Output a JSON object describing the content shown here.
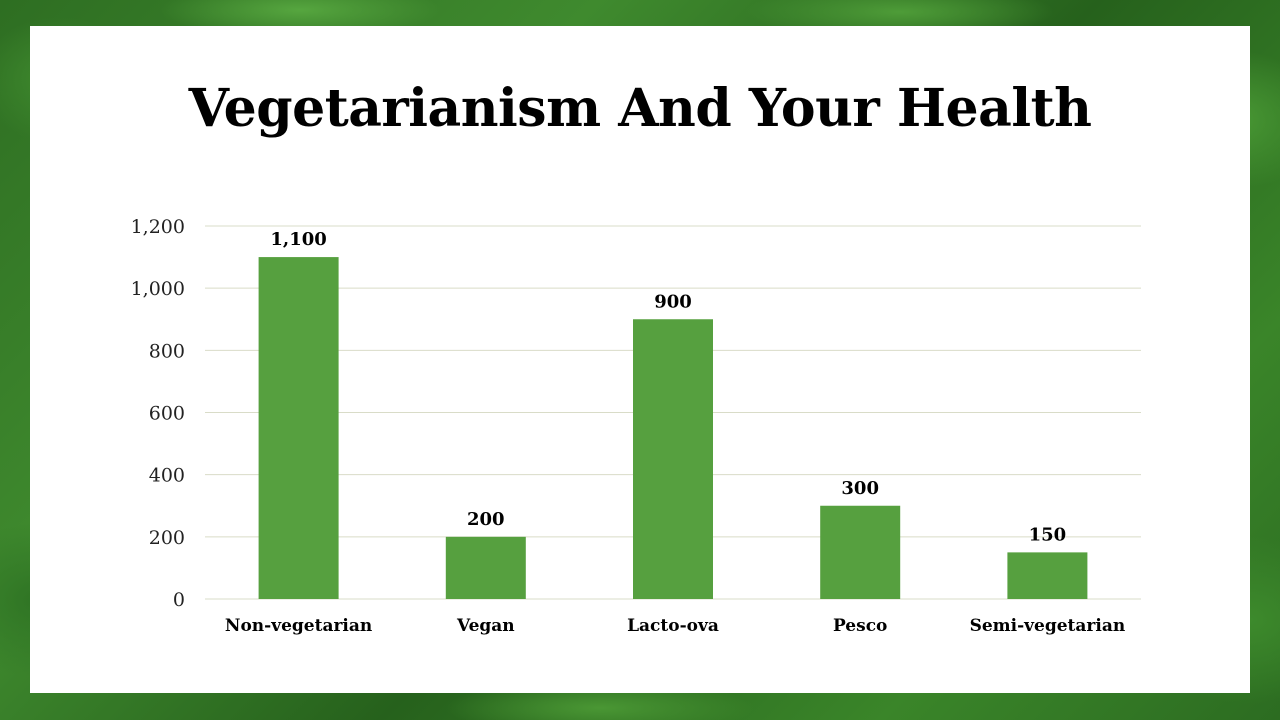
{
  "slide": {
    "title": "Vegetarianism And Your Health"
  },
  "colors": {
    "bar": "#56a03f",
    "grid": "#d9dcc8",
    "panel": "#ffffff"
  },
  "chart_data": {
    "type": "bar",
    "title": "",
    "xlabel": "",
    "ylabel": "",
    "categories": [
      "Non-vegetarian",
      "Vegan",
      "Lacto-ova",
      "Pesco",
      "Semi-vegetarian"
    ],
    "values": [
      1100,
      200,
      900,
      300,
      150
    ],
    "data_labels": [
      "1,100",
      "200",
      "900",
      "300",
      "150"
    ],
    "ylim": [
      0,
      1200
    ],
    "y_ticks": [
      0,
      200,
      400,
      600,
      800,
      1000,
      1200
    ],
    "y_tick_labels": [
      "0",
      "200",
      "400",
      "600",
      "800",
      "1,000",
      "1,200"
    ],
    "grid": true,
    "legend": "none"
  }
}
